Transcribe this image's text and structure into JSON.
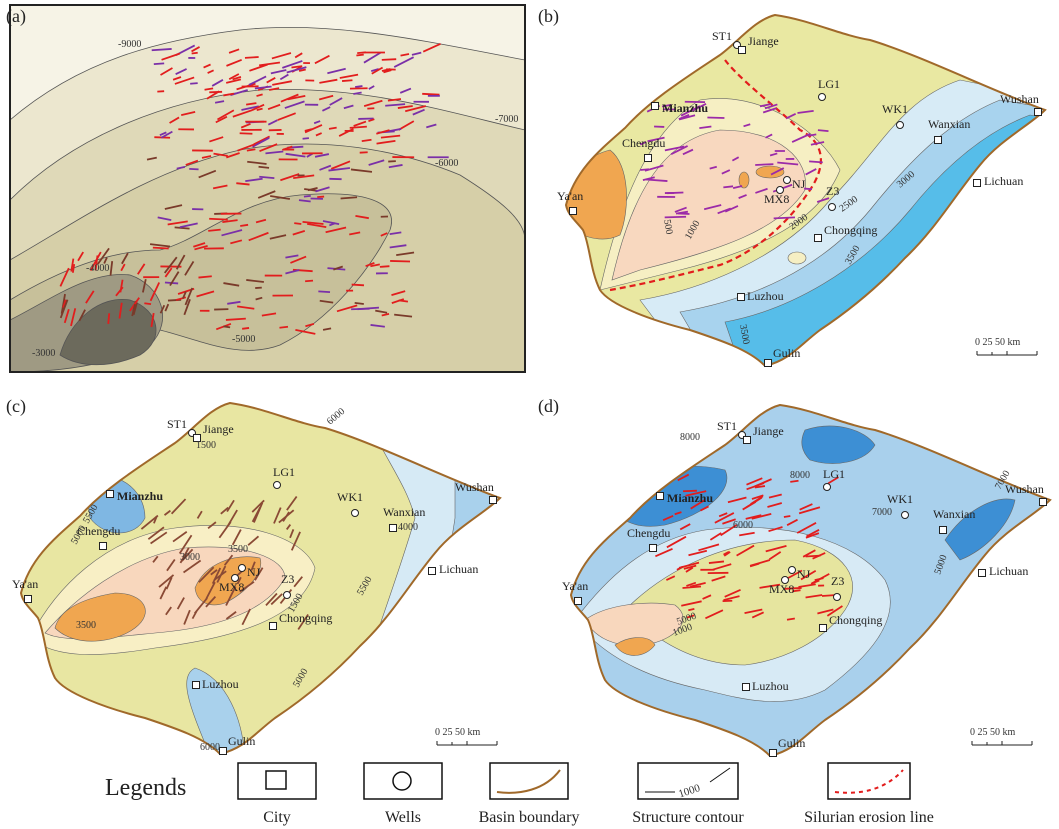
{
  "panels": [
    {
      "label": "(a)",
      "contours": [
        "-9000",
        "-7000",
        "-6000",
        "-4000",
        "-3000",
        "-5000"
      ]
    },
    {
      "label": "(b)",
      "places": [
        "ST1",
        "Jiange",
        "LG1",
        "Mianzhu",
        "WK1",
        "Wanxian",
        "Wushan",
        "Chengdu",
        "Lichuan",
        "NJ",
        "MX8",
        "Z3",
        "Ya'an",
        "Chongqing",
        "Luzhou",
        "Gulin"
      ],
      "contours": [
        "500",
        "1000",
        "2000",
        "2500",
        "3000",
        "3500",
        "3500"
      ],
      "scale": "0  25 50 km"
    },
    {
      "label": "(c)",
      "places": [
        "ST1",
        "Jiange",
        "LG1",
        "Mianzhu",
        "WK1",
        "Wanxian",
        "Wushan",
        "Chengdu",
        "Lichuan",
        "NJ",
        "MX8",
        "Z3",
        "Ya'an",
        "Chongqing",
        "Luzhou",
        "Gulin"
      ],
      "contours": [
        "1500",
        "5500",
        "5000",
        "4000",
        "3500",
        "3500",
        "3000",
        "1500",
        "5500",
        "5000",
        "6000",
        "6000"
      ],
      "scale": "0  25 50 km"
    },
    {
      "label": "(d)",
      "places": [
        "ST1",
        "Jiange",
        "LG1",
        "Mianzhu",
        "WK1",
        "Wanxian",
        "Wushan",
        "Chengdu",
        "Lichuan",
        "NJ",
        "MX8",
        "Z3",
        "Ya'an",
        "Chongqing",
        "Luzhou",
        "Gulin"
      ],
      "contours": [
        "8000",
        "8000",
        "7000",
        "7000",
        "6000",
        "5000",
        "5000",
        "1000"
      ],
      "scale": "0  25 50 km"
    }
  ],
  "legend": {
    "title": "Legends",
    "items": [
      "City",
      "Wells",
      "Basin boundary",
      "Structure contour",
      "Silurian erosion line"
    ],
    "contour_value": "1000"
  }
}
